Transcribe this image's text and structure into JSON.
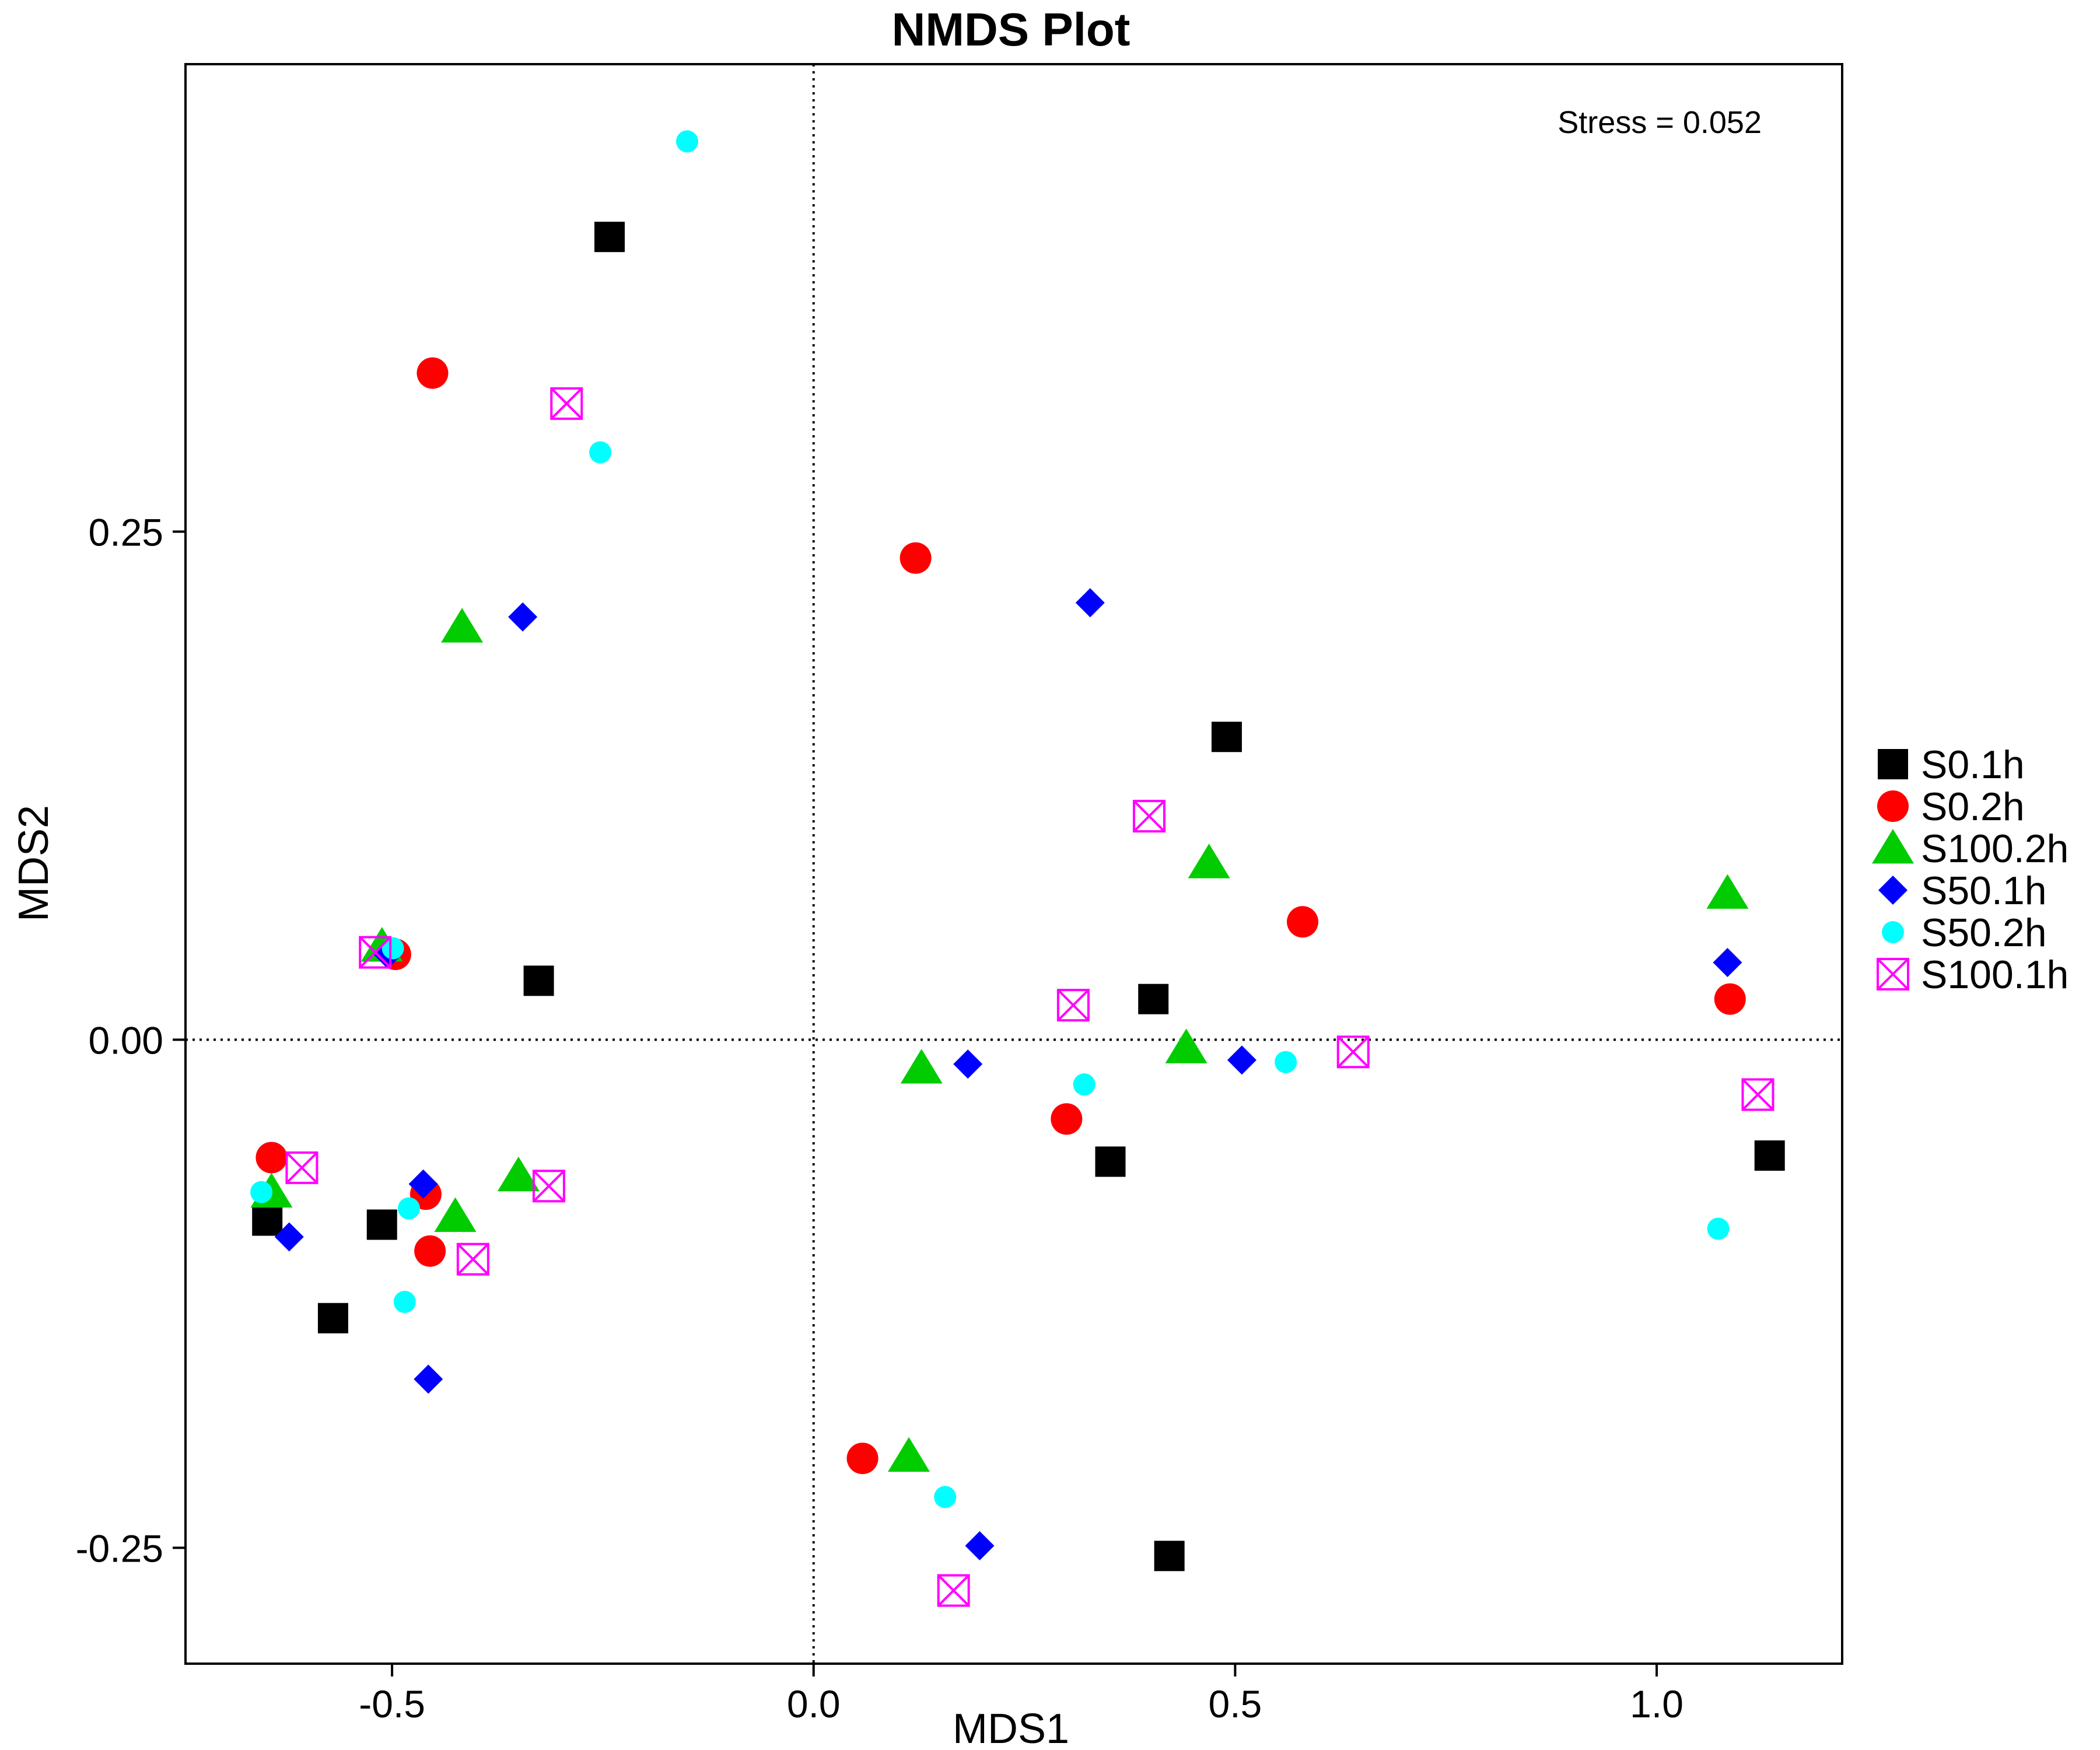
{
  "chart_data": {
    "type": "scatter",
    "title": "NMDS Plot",
    "xlabel": "MDS1",
    "ylabel": "MDS2",
    "xlim": [
      -0.745,
      1.22
    ],
    "ylim": [
      -0.307,
      0.48
    ],
    "xticks": [
      {
        "value": -0.5,
        "label": "-0.5"
      },
      {
        "value": 0.0,
        "label": "0.0"
      },
      {
        "value": 0.5,
        "label": "0.5"
      },
      {
        "value": 1.0,
        "label": "1.0"
      }
    ],
    "yticks": [
      {
        "value": 0.25,
        "label": "0.25"
      },
      {
        "value": 0.0,
        "label": "0.00"
      },
      {
        "value": -0.25,
        "label": "-0.25"
      }
    ],
    "reference_lines": {
      "x": 0,
      "y": 0,
      "style": "dotted"
    },
    "annotation": "Stress = 0.052",
    "grid": false,
    "legend_position": "right",
    "series": [
      {
        "name": "S0.1h",
        "marker": "square",
        "color": "#000000",
        "points": [
          [
            -0.242,
            0.395
          ],
          [
            -0.326,
            0.029
          ],
          [
            -0.648,
            -0.089
          ],
          [
            -0.512,
            -0.091
          ],
          [
            -0.57,
            -0.137
          ],
          [
            0.49,
            0.149
          ],
          [
            0.403,
            0.02
          ],
          [
            0.352,
            -0.06
          ],
          [
            0.422,
            -0.254
          ],
          [
            1.134,
            -0.057
          ]
        ]
      },
      {
        "name": "S0.2h",
        "marker": "circle",
        "color": "#ff0000",
        "points": [
          [
            -0.452,
            0.328
          ],
          [
            -0.496,
            0.042
          ],
          [
            -0.643,
            -0.058
          ],
          [
            -0.46,
            -0.076
          ],
          [
            -0.455,
            -0.104
          ],
          [
            0.121,
            0.237
          ],
          [
            0.58,
            0.058
          ],
          [
            0.3,
            -0.039
          ],
          [
            0.058,
            -0.206
          ],
          [
            1.087,
            0.02
          ]
        ]
      },
      {
        "name": "S100.2h",
        "marker": "triangle",
        "color": "#00cc00",
        "points": [
          [
            -0.417,
            0.203
          ],
          [
            -0.512,
            0.046
          ],
          [
            -0.643,
            -0.075
          ],
          [
            -0.35,
            -0.067
          ],
          [
            -0.425,
            -0.087
          ],
          [
            0.469,
            0.087
          ],
          [
            0.442,
            -0.004
          ],
          [
            0.128,
            -0.014
          ],
          [
            0.113,
            -0.205
          ],
          [
            1.084,
            0.072
          ]
        ]
      },
      {
        "name": "S50.1h",
        "marker": "diamond",
        "color": "#0000ff",
        "points": [
          [
            -0.345,
            0.208
          ],
          [
            -0.505,
            0.042
          ],
          [
            -0.463,
            -0.071
          ],
          [
            -0.622,
            -0.097
          ],
          [
            -0.457,
            -0.167
          ],
          [
            0.328,
            0.215
          ],
          [
            0.183,
            -0.012
          ],
          [
            0.508,
            -0.01
          ],
          [
            0.197,
            -0.249
          ],
          [
            1.084,
            0.038
          ]
        ]
      },
      {
        "name": "S50.2h",
        "marker": "circle-small",
        "color": "#00ffff",
        "points": [
          [
            -0.15,
            0.442
          ],
          [
            -0.253,
            0.289
          ],
          [
            -0.499,
            0.045
          ],
          [
            -0.655,
            -0.075
          ],
          [
            -0.48,
            -0.083
          ],
          [
            -0.485,
            -0.129
          ],
          [
            0.321,
            -0.022
          ],
          [
            0.56,
            -0.011
          ],
          [
            0.156,
            -0.225
          ],
          [
            1.073,
            -0.093
          ]
        ]
      },
      {
        "name": "S100.1h",
        "marker": "square-x",
        "color": "#ff00ff",
        "points": [
          [
            -0.293,
            0.313
          ],
          [
            -0.52,
            0.043
          ],
          [
            -0.607,
            -0.063
          ],
          [
            -0.314,
            -0.072
          ],
          [
            -0.404,
            -0.108
          ],
          [
            0.398,
            0.11
          ],
          [
            0.308,
            0.017
          ],
          [
            0.64,
            -0.006
          ],
          [
            0.166,
            -0.271
          ],
          [
            1.12,
            -0.027
          ]
        ]
      }
    ]
  }
}
